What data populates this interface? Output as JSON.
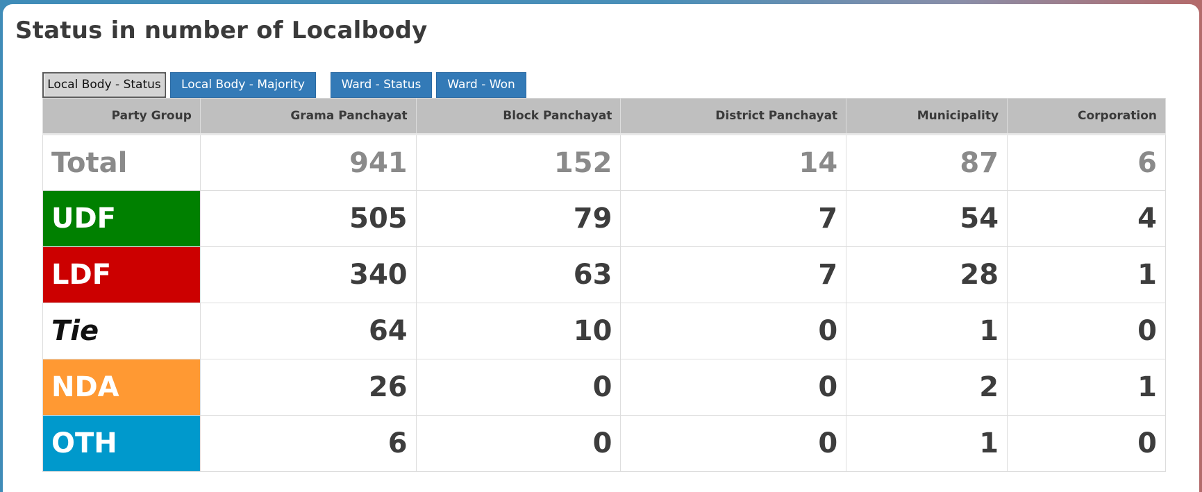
{
  "page": {
    "title": "Status in number of Localbody"
  },
  "tabs": [
    {
      "label": "Local Body - Status",
      "active": true
    },
    {
      "label": "Local Body - Majority",
      "active": false
    },
    {
      "label": "Ward - Status",
      "active": false
    },
    {
      "label": "Ward - Won",
      "active": false
    }
  ],
  "table": {
    "headers": [
      "Party Group",
      "Grama Panchayat",
      "Block Panchayat",
      "District Panchayat",
      "Municipality",
      "Corporation"
    ],
    "rows": [
      {
        "party": "Total",
        "color": "#ffffff",
        "values": [
          "941",
          "152",
          "14",
          "87",
          "6"
        ]
      },
      {
        "party": "UDF",
        "color": "#008000",
        "values": [
          "505",
          "79",
          "7",
          "54",
          "4"
        ]
      },
      {
        "party": "LDF",
        "color": "#cc0000",
        "values": [
          "340",
          "63",
          "7",
          "28",
          "1"
        ]
      },
      {
        "party": "Tie",
        "color": "#ffffff",
        "values": [
          "64",
          "10",
          "0",
          "1",
          "0"
        ]
      },
      {
        "party": "NDA",
        "color": "#ff9933",
        "values": [
          "26",
          "0",
          "0",
          "2",
          "1"
        ]
      },
      {
        "party": "OTH",
        "color": "#0099cc",
        "values": [
          "6",
          "0",
          "0",
          "1",
          "0"
        ]
      }
    ]
  }
}
